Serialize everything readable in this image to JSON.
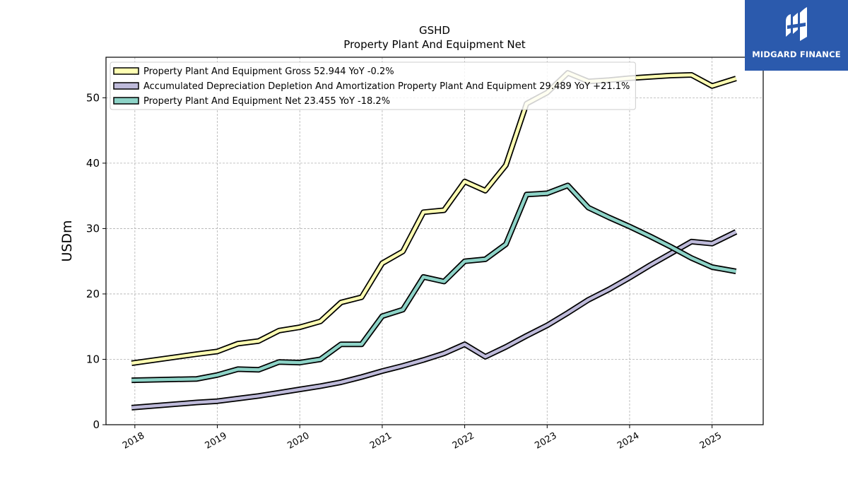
{
  "brand": {
    "name": "MIDGARD FINANCE",
    "color": "#2b5aad"
  },
  "chart_data": {
    "type": "line",
    "title": "GSHD",
    "subtitle": "Property Plant And Equipment Net",
    "ylabel": "USDm",
    "xlabel": "",
    "xlim": [
      2017.65,
      2025.62
    ],
    "ylim": [
      0,
      56.2
    ],
    "yticks": [
      0,
      10,
      20,
      30,
      40,
      50
    ],
    "xticks": [
      2018,
      2019,
      2020,
      2021,
      2022,
      2023,
      2024,
      2025
    ],
    "grid": true,
    "legend_position": "top-left",
    "x": [
      2017.96,
      2018.75,
      2019.0,
      2019.25,
      2019.5,
      2019.75,
      2020.0,
      2020.25,
      2020.5,
      2020.75,
      2021.0,
      2021.25,
      2021.5,
      2021.75,
      2022.0,
      2022.25,
      2022.5,
      2022.75,
      2023.0,
      2023.25,
      2023.5,
      2023.75,
      2024.0,
      2024.25,
      2024.5,
      2024.75,
      2025.0,
      2025.29
    ],
    "series": [
      {
        "name": "Property Plant And Equipment Gross",
        "legend_label": "Property Plant And Equipment Gross  52.944 YoY -0.2%",
        "color": "#ffffb3",
        "values": [
          9.4,
          10.8,
          11.2,
          12.4,
          12.8,
          14.4,
          14.9,
          15.8,
          18.7,
          19.5,
          24.7,
          26.5,
          32.5,
          32.8,
          37.2,
          35.8,
          39.7,
          49.1,
          50.8,
          53.8,
          52.5,
          52.7,
          53.0,
          53.2,
          53.4,
          53.5,
          51.8,
          52.944
        ]
      },
      {
        "name": "Accumulated Depreciation Depletion And Amortization Property Plant And Equipment",
        "legend_label": "Accumulated Depreciation Depletion And Amortization Property Plant And Equipment  29.489 YoY +21.1%",
        "color": "#bebada",
        "values": [
          2.6,
          3.4,
          3.6,
          4.0,
          4.4,
          4.9,
          5.4,
          5.9,
          6.5,
          7.3,
          8.2,
          9.0,
          9.9,
          10.9,
          12.3,
          10.4,
          11.9,
          13.6,
          15.2,
          17.1,
          19.1,
          20.7,
          22.5,
          24.4,
          26.2,
          28.0,
          27.7,
          29.489
        ]
      },
      {
        "name": "Property Plant And Equipment Net",
        "legend_label": "Property Plant And Equipment Net  23.455 YoY -18.2%",
        "color": "#8dd3c7",
        "values": [
          6.8,
          7.0,
          7.6,
          8.5,
          8.4,
          9.6,
          9.5,
          10.0,
          12.3,
          12.3,
          16.6,
          17.6,
          22.6,
          21.9,
          25.0,
          25.3,
          27.6,
          35.2,
          35.4,
          36.6,
          33.2,
          31.7,
          30.3,
          28.8,
          27.2,
          25.5,
          24.1,
          23.455
        ]
      }
    ]
  }
}
